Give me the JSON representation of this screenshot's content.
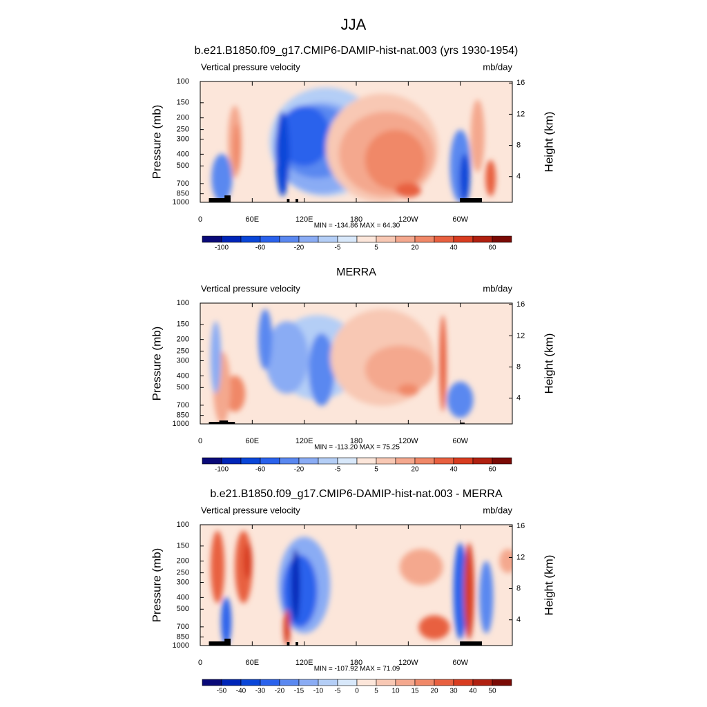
{
  "title": "JJA",
  "chart_data": [
    {
      "type": "contour",
      "title": "b.e21.B1850.f09_g17.CMIP6-DAMIP-hist-nat.003 (yrs 1930-1954)",
      "left_label": "Vertical pressure velocity",
      "right_label": "mb/day",
      "ylabel": "Pressure (mb)",
      "y2label": "Height (km)",
      "ylim": [
        100,
        1000
      ],
      "log_y": true,
      "yticks": [
        100,
        150,
        200,
        250,
        300,
        400,
        500,
        700,
        850,
        1000
      ],
      "y2lim": [
        0.7,
        16.2
      ],
      "y2ticks": [
        4,
        8,
        12,
        16
      ],
      "xlim": [
        0,
        360
      ],
      "xticks": [
        0,
        {
          "value": 60,
          "label": "60E"
        },
        {
          "value": 120,
          "label": "120E"
        },
        180,
        {
          "value": 240,
          "label": "120W"
        },
        {
          "value": 300,
          "label": "60W"
        }
      ],
      "stats": "MIN = -134.86  MAX =  64.30",
      "colorbar": {
        "colors": [
          "#0a0a78",
          "#0025b8",
          "#0a46d8",
          "#2a62ec",
          "#5a88f0",
          "#8aacf4",
          "#b4cef6",
          "#d8e8fa",
          "#fce6da",
          "#f8c8b4",
          "#f4a88e",
          "#f08868",
          "#e86040",
          "#d83c20",
          "#b02010",
          "#7a0a05"
        ],
        "labels": [
          -100,
          -60,
          -20,
          -5,
          5,
          20,
          40,
          60
        ]
      }
    },
    {
      "type": "contour",
      "title": "MERRA",
      "left_label": "Vertical pressure velocity",
      "right_label": "mb/day",
      "ylabel": "Pressure (mb)",
      "y2label": "Height (km)",
      "ylim": [
        100,
        1000
      ],
      "log_y": true,
      "yticks": [
        100,
        150,
        200,
        250,
        300,
        400,
        500,
        700,
        850,
        1000
      ],
      "y2lim": [
        0.7,
        16.2
      ],
      "y2ticks": [
        4,
        8,
        12,
        16
      ],
      "xlim": [
        0,
        360
      ],
      "xticks": [
        0,
        {
          "value": 60,
          "label": "60E"
        },
        {
          "value": 120,
          "label": "120E"
        },
        180,
        {
          "value": 240,
          "label": "120W"
        },
        {
          "value": 300,
          "label": "60W"
        }
      ],
      "stats": "MIN = -113.20  MAX =  75.25",
      "colorbar": {
        "colors": [
          "#0a0a78",
          "#0025b8",
          "#0a46d8",
          "#2a62ec",
          "#5a88f0",
          "#8aacf4",
          "#b4cef6",
          "#d8e8fa",
          "#fce6da",
          "#f8c8b4",
          "#f4a88e",
          "#f08868",
          "#e86040",
          "#d83c20",
          "#b02010",
          "#7a0a05"
        ],
        "labels": [
          -100,
          -60,
          -20,
          -5,
          5,
          20,
          40,
          60
        ]
      }
    },
    {
      "type": "contour",
      "title": "b.e21.B1850.f09_g17.CMIP6-DAMIP-hist-nat.003 - MERRA",
      "left_label": "Vertical pressure velocity",
      "right_label": "mb/day",
      "ylabel": "Pressure (mb)",
      "y2label": "Height (km)",
      "ylim": [
        100,
        1000
      ],
      "log_y": true,
      "yticks": [
        100,
        150,
        200,
        250,
        300,
        400,
        500,
        700,
        850,
        1000
      ],
      "y2lim": [
        0.7,
        16.2
      ],
      "y2ticks": [
        4,
        8,
        12,
        16
      ],
      "xlim": [
        0,
        360
      ],
      "xticks": [
        0,
        {
          "value": 60,
          "label": "60E"
        },
        {
          "value": 120,
          "label": "120E"
        },
        180,
        {
          "value": 240,
          "label": "120W"
        },
        {
          "value": 300,
          "label": "60W"
        }
      ],
      "stats": "MIN = -107.92  MAX =  71.09",
      "colorbar": {
        "colors": [
          "#0a0a78",
          "#0025b8",
          "#0a46d8",
          "#2a62ec",
          "#5a88f0",
          "#8aacf4",
          "#b4cef6",
          "#d8e8fa",
          "#fce6da",
          "#f8c8b4",
          "#f4a88e",
          "#f08868",
          "#e86040",
          "#d83c20",
          "#b02010",
          "#7a0a05"
        ],
        "labels": [
          -50,
          -40,
          -30,
          -20,
          -15,
          -10,
          -5,
          0,
          5,
          10,
          15,
          20,
          30,
          40,
          50
        ]
      }
    }
  ]
}
